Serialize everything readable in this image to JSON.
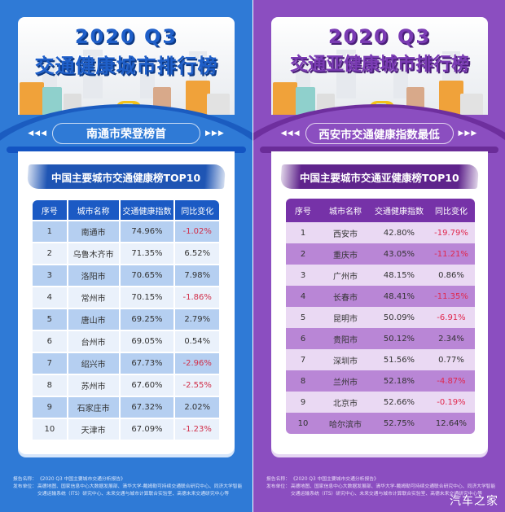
{
  "left": {
    "title_line1": "2020 Q3",
    "title_line2": "交通健康城市排行榜",
    "subtitle": "南通市荣登榜首",
    "arrows_left": "◀◀◀",
    "arrows_right": "▶▶▶",
    "table_title": "中国主要城市交通健康榜TOP10",
    "columns": [
      "序号",
      "城市名称",
      "交通健康指数",
      "同比变化"
    ],
    "rows": [
      {
        "rank": "1",
        "city": "南通市",
        "index": "74.96%",
        "change": "-1.02%"
      },
      {
        "rank": "2",
        "city": "乌鲁木齐市",
        "index": "71.35%",
        "change": "6.52%"
      },
      {
        "rank": "3",
        "city": "洛阳市",
        "index": "70.65%",
        "change": "7.98%"
      },
      {
        "rank": "4",
        "city": "常州市",
        "index": "70.15%",
        "change": "-1.86%"
      },
      {
        "rank": "5",
        "city": "唐山市",
        "index": "69.25%",
        "change": "2.79%"
      },
      {
        "rank": "6",
        "city": "台州市",
        "index": "69.05%",
        "change": "0.54%"
      },
      {
        "rank": "7",
        "city": "绍兴市",
        "index": "67.73%",
        "change": "-2.96%"
      },
      {
        "rank": "8",
        "city": "苏州市",
        "index": "67.60%",
        "change": "-2.55%"
      },
      {
        "rank": "9",
        "city": "石家庄市",
        "index": "67.32%",
        "change": "2.02%"
      },
      {
        "rank": "10",
        "city": "天津市",
        "index": "67.09%",
        "change": "-1.23%"
      }
    ],
    "footer": {
      "report_label": "报告名称：",
      "report_name": "《2020 Q3 中国主要城市交通分析报告》",
      "publisher_label": "发布单位：",
      "publisher": "高德地图、国家信息中心大数据发展部、清华大学-戴姆勒可持续交通联合研究中心、同济大学智能交通运输系统（ITS）研究中心、未来交通与城市计算联合实验室、高德未来交通研究中心等"
    }
  },
  "right": {
    "title_line1": "2020 Q3",
    "title_line2": "交通亚健康城市排行榜",
    "subtitle": "西安市交通健康指数最低",
    "arrows_left": "◀◀◀",
    "arrows_right": "▶▶▶",
    "table_title": "中国主要城市交通亚健康榜TOP10",
    "columns": [
      "序号",
      "城市名称",
      "交通健康指数",
      "同比变化"
    ],
    "rows": [
      {
        "rank": "1",
        "city": "西安市",
        "index": "42.80%",
        "change": "-19.79%"
      },
      {
        "rank": "2",
        "city": "重庆市",
        "index": "43.05%",
        "change": "-11.21%"
      },
      {
        "rank": "3",
        "city": "广州市",
        "index": "48.15%",
        "change": "0.86%"
      },
      {
        "rank": "4",
        "city": "长春市",
        "index": "48.41%",
        "change": "-11.35%"
      },
      {
        "rank": "5",
        "city": "昆明市",
        "index": "50.09%",
        "change": "-6.91%"
      },
      {
        "rank": "6",
        "city": "贵阳市",
        "index": "50.12%",
        "change": "2.34%"
      },
      {
        "rank": "7",
        "city": "深圳市",
        "index": "51.56%",
        "change": "0.77%"
      },
      {
        "rank": "8",
        "city": "兰州市",
        "index": "52.18%",
        "change": "-4.87%"
      },
      {
        "rank": "9",
        "city": "北京市",
        "index": "52.66%",
        "change": "-0.19%"
      },
      {
        "rank": "10",
        "city": "哈尔滨市",
        "index": "52.75%",
        "change": "12.64%"
      }
    ],
    "footer": {
      "report_label": "报告名称：",
      "report_name": "《2020 Q3 中国主要城市交通分析报告》",
      "publisher_label": "发布单位：",
      "publisher": "高德地图、国家信息中心大数据发展部、清华大学-戴姆勒可持续交通联合研究中心、同济大学智能交通运输系统（ITS）研究中心、未来交通与城市计算联合实验室、高德未来交通研究中心等"
    }
  },
  "watermark": "汽车之家",
  "colors": {
    "left_bg": "#2f7ad6",
    "right_bg": "#8b4ec0",
    "negative": "#d1304a"
  }
}
